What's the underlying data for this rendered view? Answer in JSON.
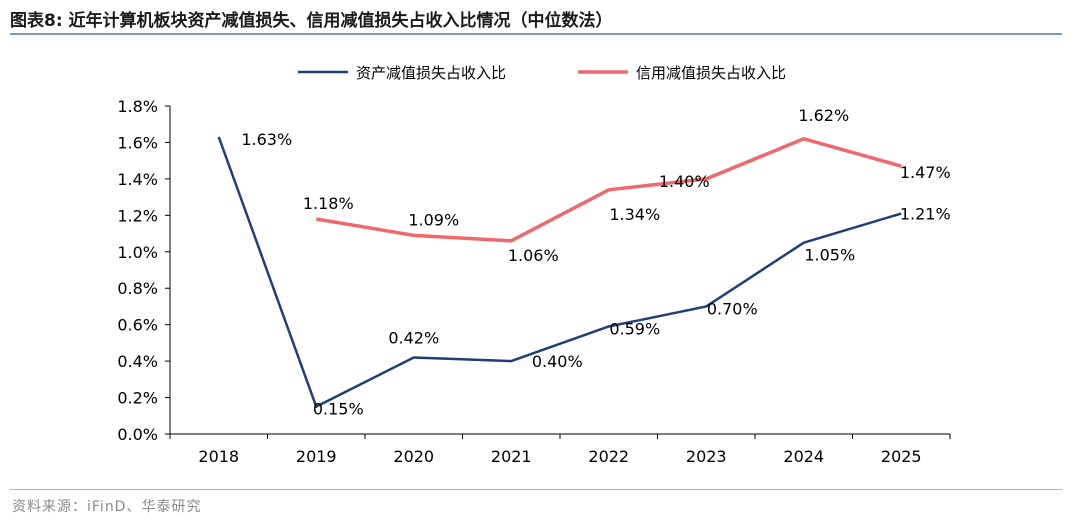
{
  "figure": {
    "title": "图表8:  近年计算机板块资产减值损失、信用减值损失占收入比情况（中位数法）",
    "source": "资料来源：iFinD、华泰研究"
  },
  "chart_data": {
    "type": "line",
    "x": [
      "2018",
      "2019",
      "2020",
      "2021",
      "2022",
      "2023",
      "2024",
      "2025"
    ],
    "ylim": [
      0,
      1.8
    ],
    "yticks": [
      "0.0%",
      "0.2%",
      "0.4%",
      "0.6%",
      "0.8%",
      "1.0%",
      "1.2%",
      "1.4%",
      "1.6%",
      "1.8%"
    ],
    "grid": false,
    "legend": "top-center",
    "series": [
      {
        "name": "资产减值损失占收入比",
        "color": "#1f3f7a",
        "values": [
          1.63,
          0.15,
          0.42,
          0.4,
          0.59,
          0.7,
          1.05,
          1.21
        ],
        "labels": [
          "1.63%",
          "0.15%",
          "0.42%",
          "0.40%",
          "0.59%",
          "0.70%",
          "1.05%",
          "1.21%"
        ]
      },
      {
        "name": "信用减值损失占收入比",
        "color": "#f0686c",
        "values": [
          null,
          1.18,
          1.09,
          1.06,
          1.34,
          1.4,
          1.62,
          1.47
        ],
        "labels": [
          "",
          "1.18%",
          "1.09%",
          "1.06%",
          "1.34%",
          "1.40%",
          "1.62%",
          "1.47%"
        ]
      }
    ]
  }
}
